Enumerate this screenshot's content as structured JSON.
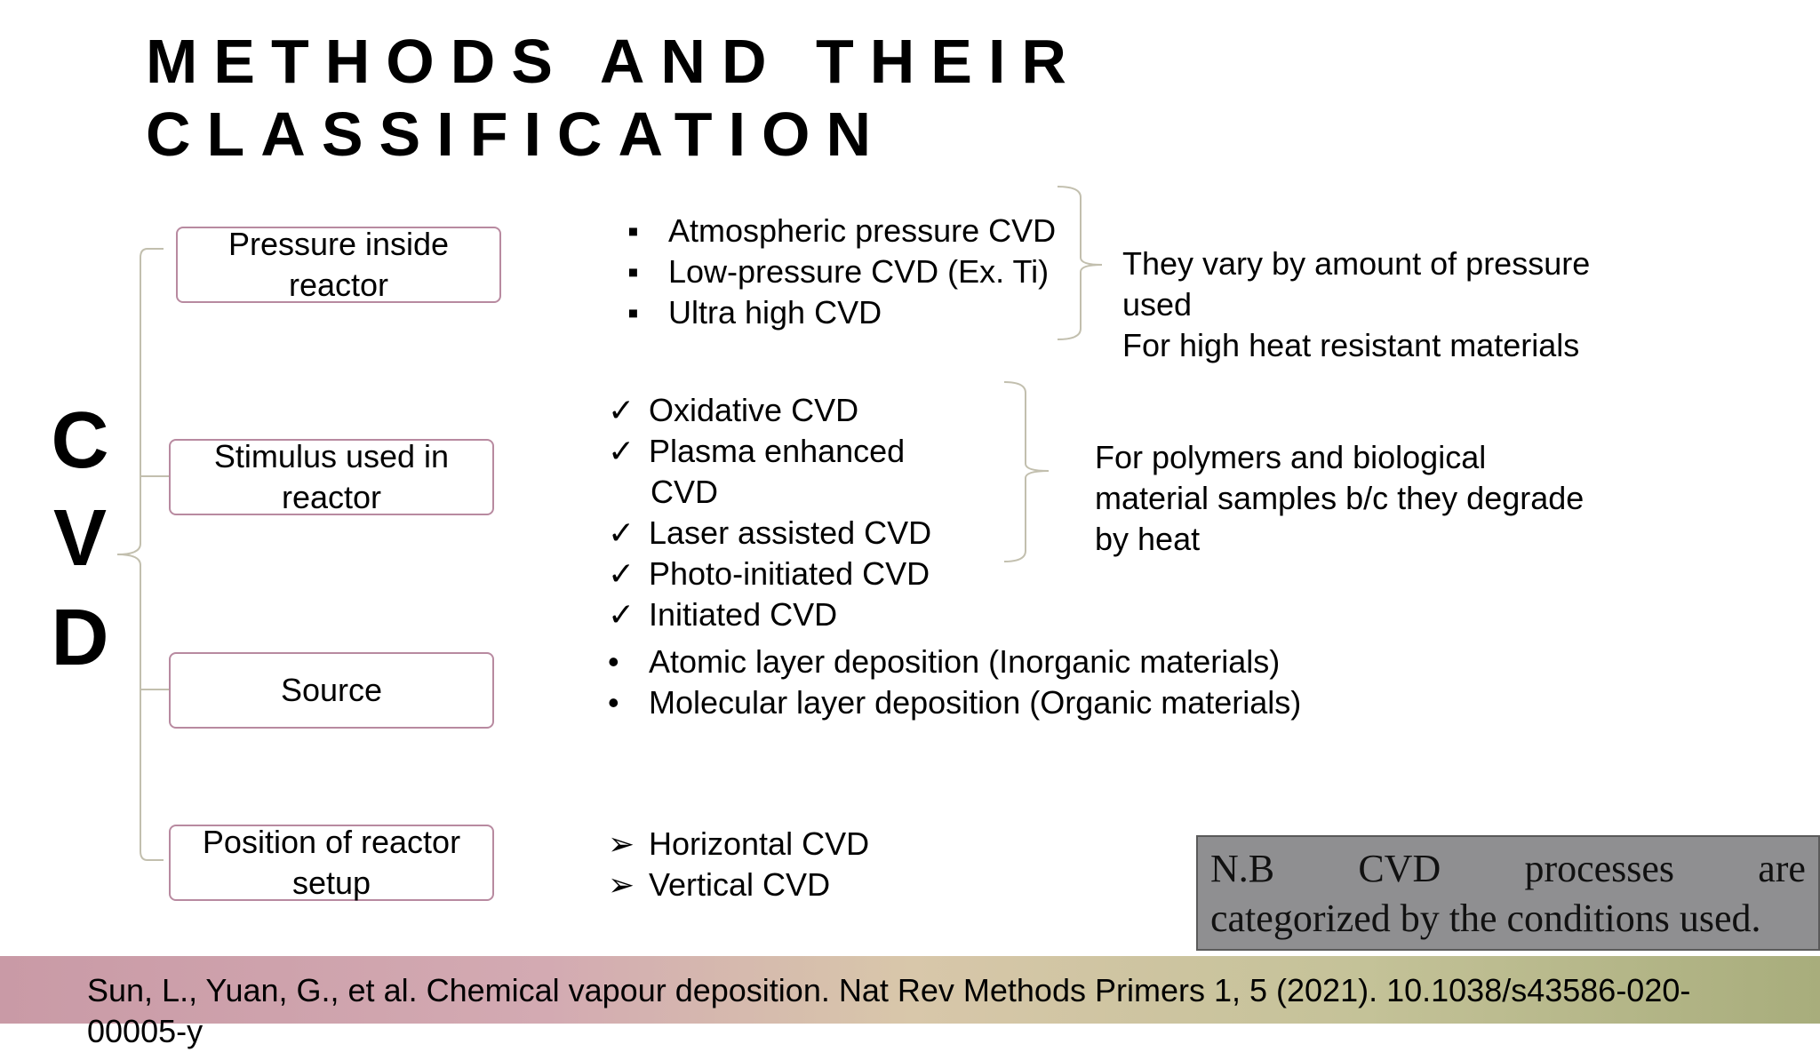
{
  "title": {
    "line1": "METHODS AND THEIR",
    "line2": "CLASSIFICATION"
  },
  "cvd_letters": [
    "C",
    "V",
    "D"
  ],
  "categories": [
    {
      "label": "Pressure inside reactor"
    },
    {
      "label": "Stimulus used in reactor"
    },
    {
      "label": "Source"
    },
    {
      "label": "Position of reactor setup"
    }
  ],
  "pressure_methods": [
    "Atmospheric pressure CVD",
    "Low-pressure CVD (Ex. Ti)",
    "Ultra high CVD"
  ],
  "pressure_note": [
    "They vary by amount of pressure",
    "used",
    "For high heat resistant materials"
  ],
  "stimulus_methods": [
    "Oxidative CVD",
    "Plasma enhanced",
    "CVD",
    "Laser assisted CVD",
    "Photo-initiated CVD",
    "Initiated CVD"
  ],
  "stimulus_note": [
    "For polymers and biological",
    "material samples b/c they degrade",
    "by heat"
  ],
  "source_methods": [
    "Atomic layer deposition (Inorganic materials)",
    "Molecular layer deposition (Organic materials)"
  ],
  "position_methods": [
    "Horizontal CVD",
    "Vertical CVD"
  ],
  "bullets": {
    "square": "▪",
    "check": "✓",
    "dot": "•",
    "arrow": "➢"
  },
  "nb": {
    "w1": "N.B",
    "w2": "CVD",
    "w3": "processes",
    "w4": "are",
    "line2": "categorized by the conditions used."
  },
  "citation": "Sun, L., Yuan, G., et al. Chemical vapour deposition. Nat Rev Methods Primers 1, 5 (2021). 10.1038/s43586-020-00005-y",
  "colors": {
    "box_border": "#b88aa0",
    "connector": "#c2bfae",
    "nb_box": "#8f8f91"
  }
}
